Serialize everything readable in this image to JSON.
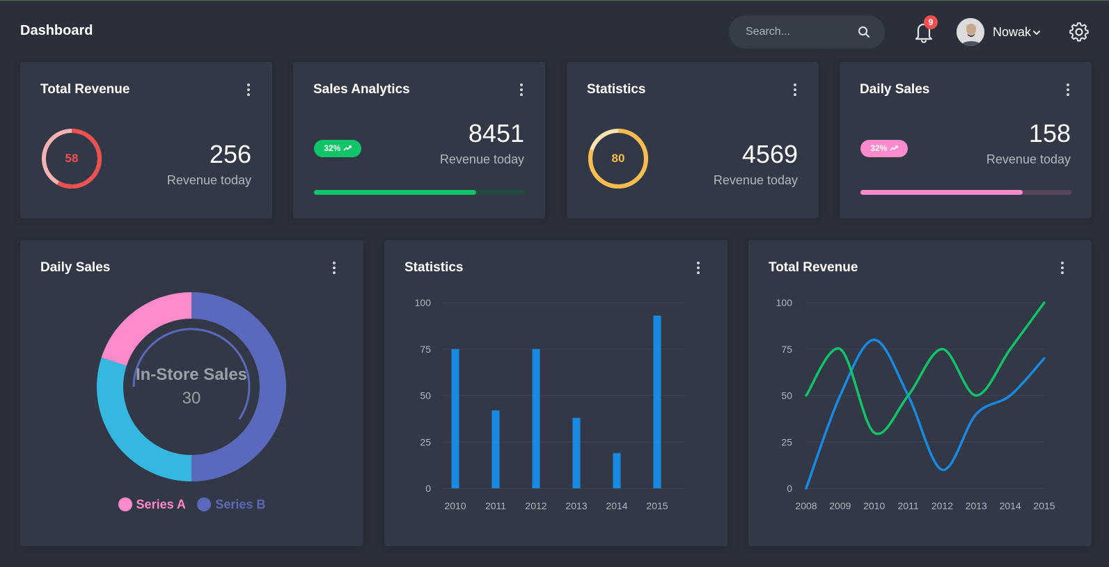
{
  "header": {
    "title": "Dashboard",
    "search_placeholder": "Search...",
    "notification_count": "9",
    "user_name": "Nowak"
  },
  "stat_cards": [
    {
      "title": "Total Revenue",
      "value": "256",
      "label": "Revenue today",
      "ring_value": "58",
      "ring_percent": 58,
      "color": "#f05050"
    },
    {
      "title": "Sales Analytics",
      "value": "8451",
      "label": "Revenue today",
      "badge": "32%",
      "progress_percent": 77,
      "color": "#10c469"
    },
    {
      "title": "Statistics",
      "value": "4569",
      "label": "Revenue today",
      "ring_value": "80",
      "ring_percent": 80,
      "color": "#f9bc4f"
    },
    {
      "title": "Daily Sales",
      "value": "158",
      "label": "Revenue today",
      "badge": "32%",
      "progress_percent": 77,
      "color": "#ff8acc"
    }
  ],
  "panels": {
    "donut": {
      "title": "Daily Sales"
    },
    "bars": {
      "title": "Statistics"
    },
    "lines": {
      "title": "Total Revenue"
    }
  },
  "chart_data": [
    {
      "type": "pie",
      "title": "Daily Sales",
      "center_label": "In-Store Sales",
      "center_value": "30",
      "categories": [
        "In-Store Sales",
        "Series A",
        "Series B"
      ],
      "values": [
        30,
        20,
        50
      ],
      "colors": [
        "#35b8e0",
        "#ff8acc",
        "#5b69bc"
      ],
      "legend": [
        {
          "name": "Series A",
          "color": "#ff8acc"
        },
        {
          "name": "Series B",
          "color": "#5b69bc"
        }
      ]
    },
    {
      "type": "bar",
      "title": "Statistics",
      "categories": [
        "2010",
        "2011",
        "2012",
        "2013",
        "2014",
        "2015"
      ],
      "values": [
        75,
        42,
        75,
        38,
        19,
        93
      ],
      "ylim": [
        0,
        100
      ],
      "yticks": [
        0,
        25,
        50,
        75,
        100
      ],
      "color": "#188ae2",
      "grid": true
    },
    {
      "type": "line",
      "title": "Total Revenue",
      "x": [
        "2008",
        "2009",
        "2010",
        "2011",
        "2012",
        "2013",
        "2014",
        "2015"
      ],
      "series": [
        {
          "values": [
            0,
            50,
            80,
            50,
            10,
            40,
            50,
            70
          ],
          "color": "#188ae2"
        },
        {
          "values": [
            50,
            75,
            30,
            50,
            75,
            50,
            75,
            100
          ],
          "color": "#10c469"
        }
      ],
      "ylim": [
        0,
        100
      ],
      "yticks": [
        0,
        25,
        50,
        75,
        100
      ],
      "grid": true
    }
  ]
}
